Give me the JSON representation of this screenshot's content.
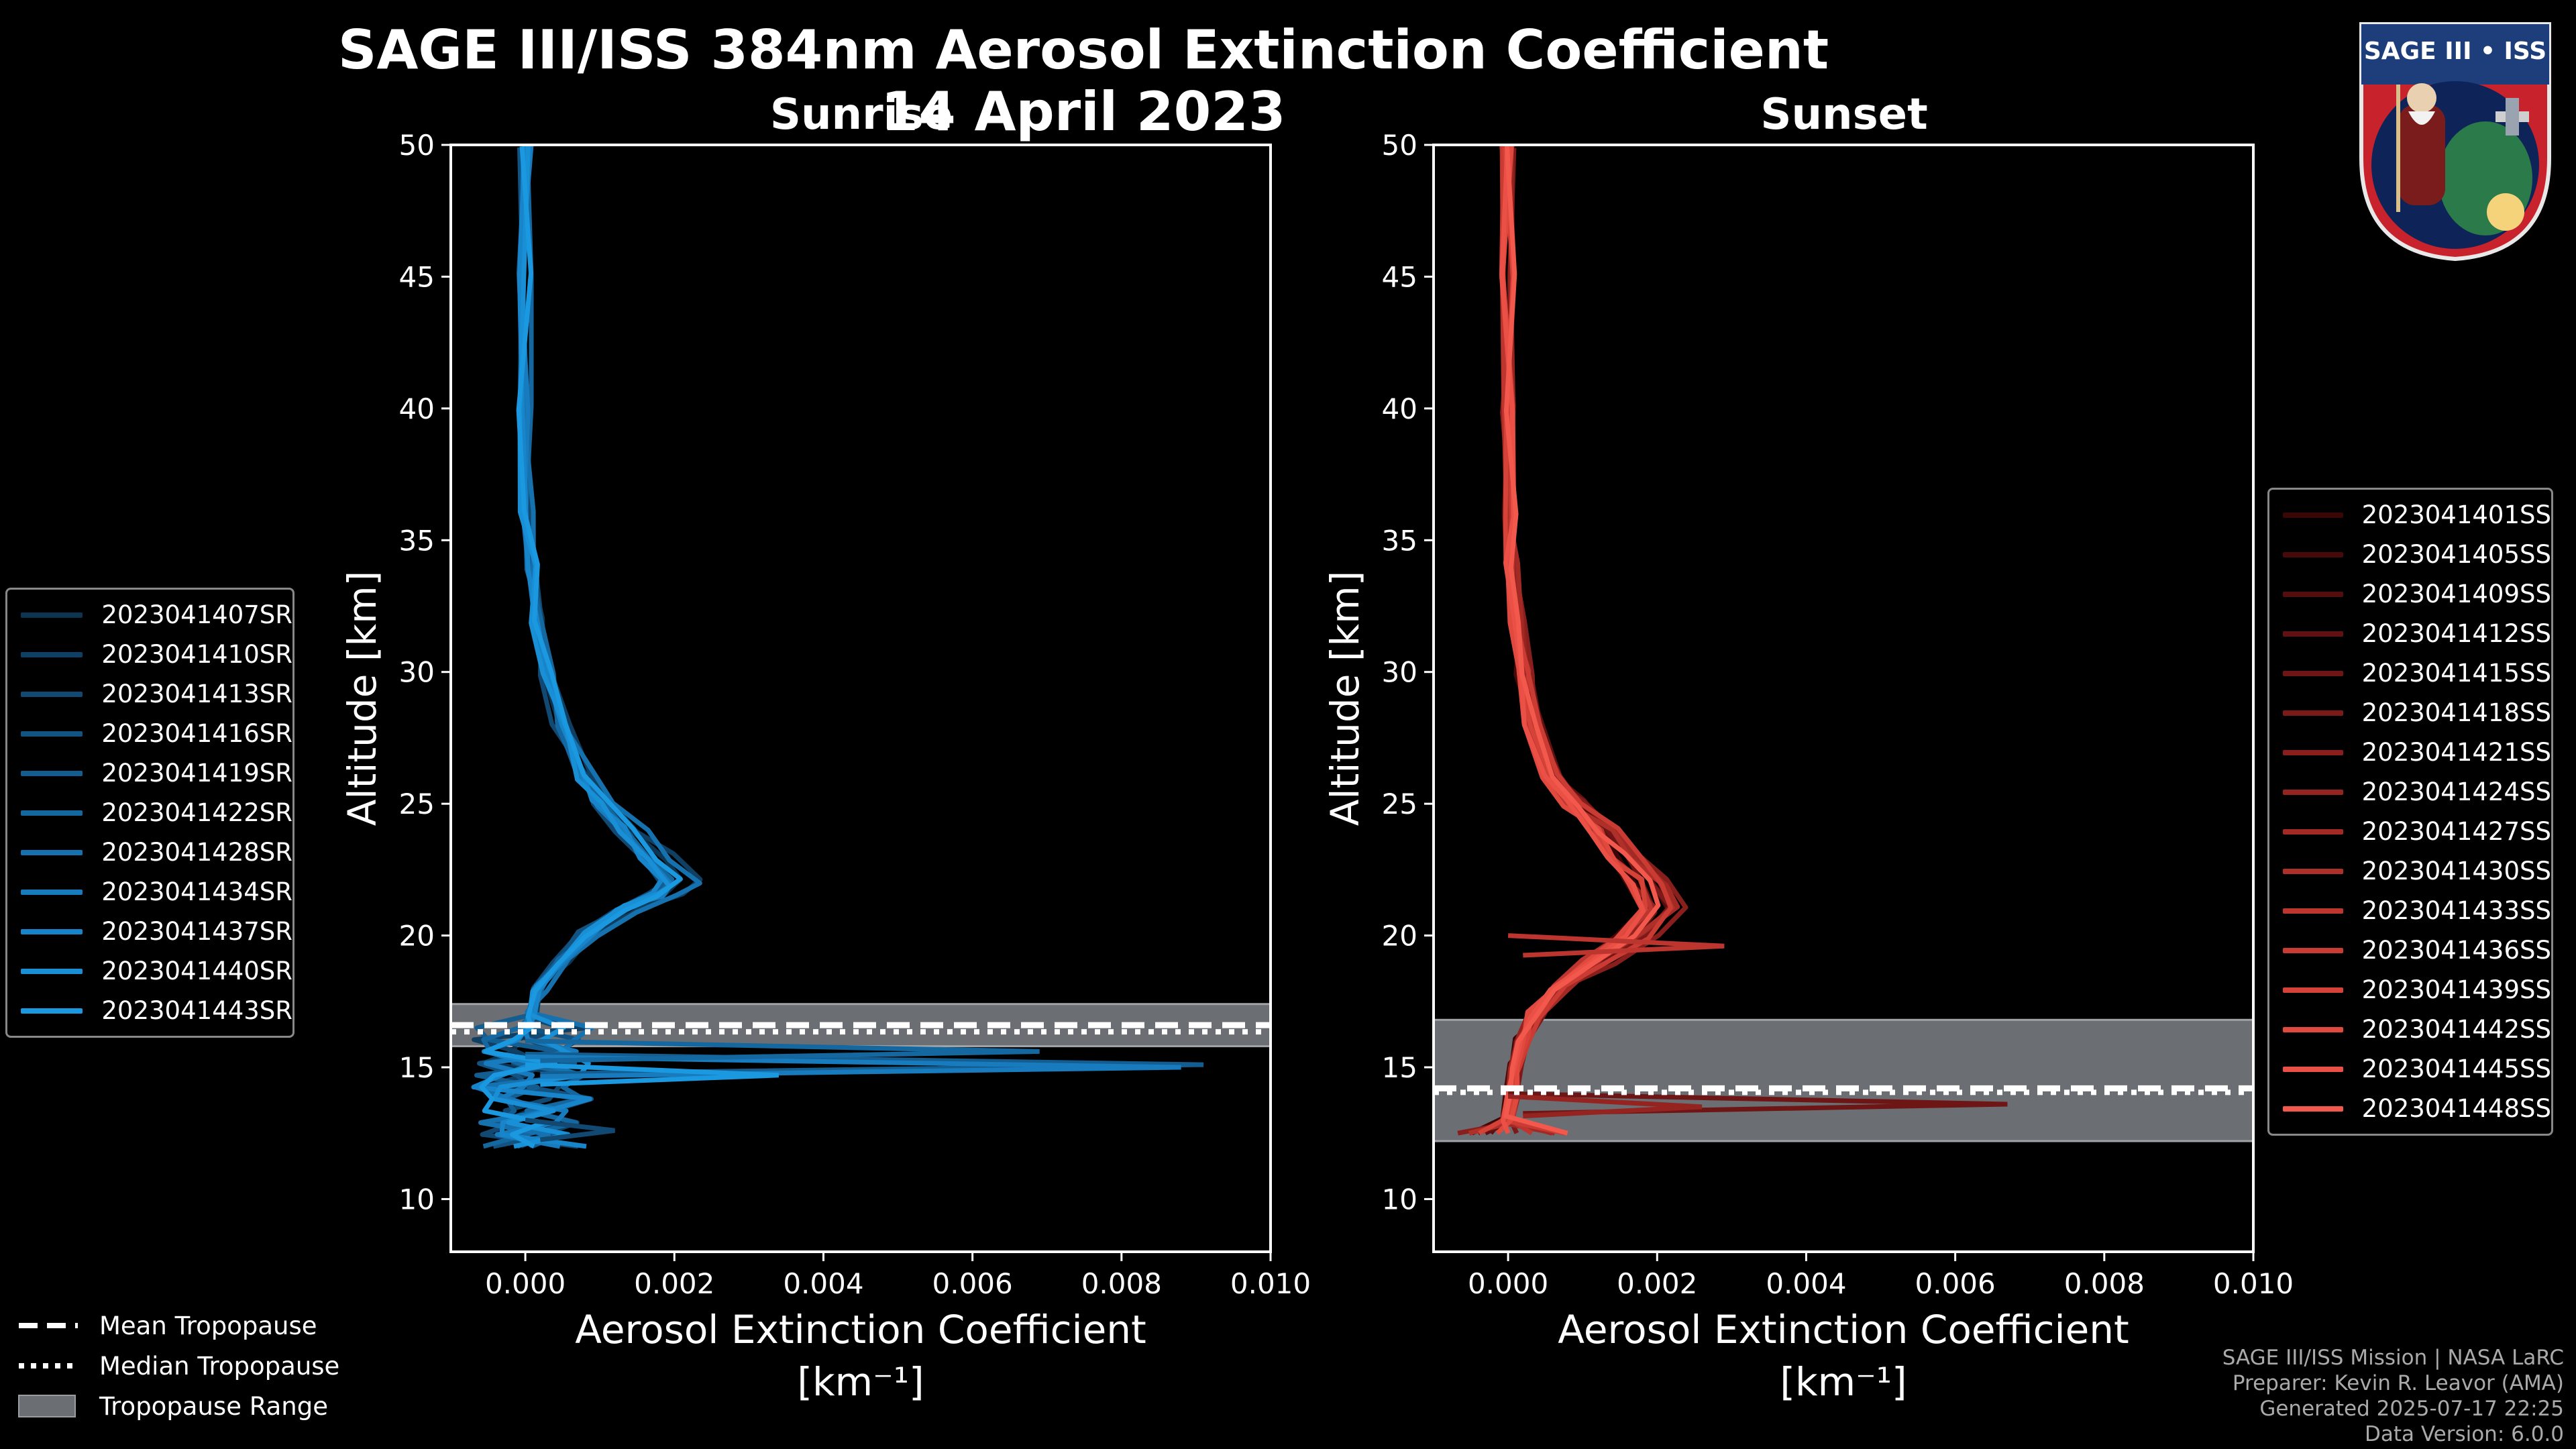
{
  "header": {
    "title": "SAGE III/ISS 384nm Aerosol Extinction Coefficient",
    "date": "14 April 2023"
  },
  "badge": {
    "text": "SAGE III • ISS"
  },
  "credits": [
    "SAGE III/ISS Mission | NASA LaRC",
    "Preparer: Kevin R. Leavor (AMA)",
    "Generated 2025-07-17 22:25",
    "Data Version: 6.0.0"
  ],
  "bottom_legend": [
    {
      "label": "Mean Tropopause",
      "style": "dashed"
    },
    {
      "label": "Median Tropopause",
      "style": "dotted"
    },
    {
      "label": "Tropopause Range",
      "style": "band"
    }
  ],
  "chart_data": [
    {
      "type": "line",
      "panel": "sunrise",
      "subtitle": "Sunrise",
      "xlabel": "Aerosol Extinction Coefficient",
      "xunit": "[km⁻¹]",
      "ylabel": "Altitude [km]",
      "xlim": [
        -0.001,
        0.01
      ],
      "ylim": [
        8,
        50
      ],
      "xticks": [
        0.0,
        0.002,
        0.004,
        0.006,
        0.008,
        0.01
      ],
      "xtick_labels": [
        "0.000",
        "0.002",
        "0.004",
        "0.006",
        "0.008",
        "0.010"
      ],
      "yticks": [
        10,
        15,
        20,
        25,
        30,
        35,
        40,
        45,
        50
      ],
      "tropopause": {
        "mean": 16.6,
        "median": 16.5,
        "range": [
          15.8,
          17.4
        ]
      },
      "legend_position": "left",
      "series": [
        {
          "name": "2023041407SR",
          "color": "#0d3552"
        },
        {
          "name": "2023041410SR",
          "color": "#0f3f62"
        },
        {
          "name": "2023041413SR",
          "color": "#114972"
        },
        {
          "name": "2023041416SR",
          "color": "#125382"
        },
        {
          "name": "2023041419SR",
          "color": "#145d91"
        },
        {
          "name": "2023041422SR",
          "color": "#1567a0"
        },
        {
          "name": "2023041428SR",
          "color": "#1671af"
        },
        {
          "name": "2023041434SR",
          "color": "#177bbd"
        },
        {
          "name": "2023041437SR",
          "color": "#1885ca"
        },
        {
          "name": "2023041440SR",
          "color": "#198fd6"
        },
        {
          "name": "2023041443SR",
          "color": "#1a98e0"
        }
      ],
      "profile": [
        [
          50,
          0.0
        ],
        [
          45,
          0.0
        ],
        [
          40,
          0.0
        ],
        [
          36,
          2e-05
        ],
        [
          34,
          8e-05
        ],
        [
          32,
          0.00018
        ],
        [
          30,
          0.00032
        ],
        [
          28,
          0.0005
        ],
        [
          26,
          0.00085
        ],
        [
          25,
          0.0011
        ],
        [
          24,
          0.00145
        ],
        [
          23,
          0.0018
        ],
        [
          22,
          0.0021
        ],
        [
          21.5,
          0.0019
        ],
        [
          21,
          0.0014
        ],
        [
          20,
          0.0009
        ],
        [
          19,
          0.0005
        ],
        [
          18,
          0.0002
        ],
        [
          17,
          0.0001
        ]
      ],
      "spikes": [
        {
          "alt": 15.1,
          "x": 0.0091
        },
        {
          "alt": 15.0,
          "x": 0.0088
        },
        {
          "alt": 14.7,
          "x": 0.0034
        },
        {
          "alt": 12.6,
          "x": 0.0012
        },
        {
          "alt": 15.6,
          "x": 0.0069
        }
      ]
    },
    {
      "type": "line",
      "panel": "sunset",
      "subtitle": "Sunset",
      "xlabel": "Aerosol Extinction Coefficient",
      "xunit": "[km⁻¹]",
      "ylabel": "Altitude [km]",
      "xlim": [
        -0.001,
        0.01
      ],
      "ylim": [
        8,
        50
      ],
      "xticks": [
        0.0,
        0.002,
        0.004,
        0.006,
        0.008,
        0.01
      ],
      "xtick_labels": [
        "0.000",
        "0.002",
        "0.004",
        "0.006",
        "0.008",
        "0.010"
      ],
      "yticks": [
        10,
        15,
        20,
        25,
        30,
        35,
        40,
        45,
        50
      ],
      "tropopause": {
        "mean": 14.2,
        "median": 14.2,
        "range": [
          12.2,
          16.8
        ]
      },
      "legend_position": "right",
      "series": [
        {
          "name": "2023041401SS",
          "color": "#3a0606"
        },
        {
          "name": "2023041405SS",
          "color": "#470909"
        },
        {
          "name": "2023041409SS",
          "color": "#540d0d"
        },
        {
          "name": "2023041412SS",
          "color": "#611111"
        },
        {
          "name": "2023041415SS",
          "color": "#6e1515"
        },
        {
          "name": "2023041418SS",
          "color": "#7b1a18"
        },
        {
          "name": "2023041421SS",
          "color": "#881f1c"
        },
        {
          "name": "2023041424SS",
          "color": "#952420"
        },
        {
          "name": "2023041427SS",
          "color": "#a22924"
        },
        {
          "name": "2023041430SS",
          "color": "#af2f29"
        },
        {
          "name": "2023041433SS",
          "color": "#bc352e"
        },
        {
          "name": "2023041436SS",
          "color": "#c93b33"
        },
        {
          "name": "2023041439SS",
          "color": "#d54238"
        },
        {
          "name": "2023041442SS",
          "color": "#e0493e"
        },
        {
          "name": "2023041445SS",
          "color": "#ea5045"
        },
        {
          "name": "2023041448SS",
          "color": "#f3584c"
        }
      ],
      "profile": [
        [
          50,
          0.0
        ],
        [
          45,
          0.0
        ],
        [
          40,
          0.0
        ],
        [
          36,
          2e-05
        ],
        [
          34,
          6e-05
        ],
        [
          32,
          0.00012
        ],
        [
          30,
          0.00022
        ],
        [
          28,
          0.00035
        ],
        [
          26,
          0.0006
        ],
        [
          25,
          0.0009
        ],
        [
          24,
          0.0013
        ],
        [
          23,
          0.0016
        ],
        [
          22,
          0.0019
        ],
        [
          21,
          0.0021
        ],
        [
          20,
          0.0017
        ],
        [
          19,
          0.0012
        ],
        [
          18,
          0.0007
        ],
        [
          17,
          0.0004
        ],
        [
          16,
          0.0002
        ],
        [
          15,
          0.0001
        ],
        [
          14,
          5e-05
        ],
        [
          13,
          0.0
        ]
      ],
      "spikes": [
        {
          "alt": 13.6,
          "x": 0.0067
        },
        {
          "alt": 13.5,
          "x": 0.0026
        },
        {
          "alt": 19.6,
          "x": 0.0029
        }
      ]
    }
  ]
}
